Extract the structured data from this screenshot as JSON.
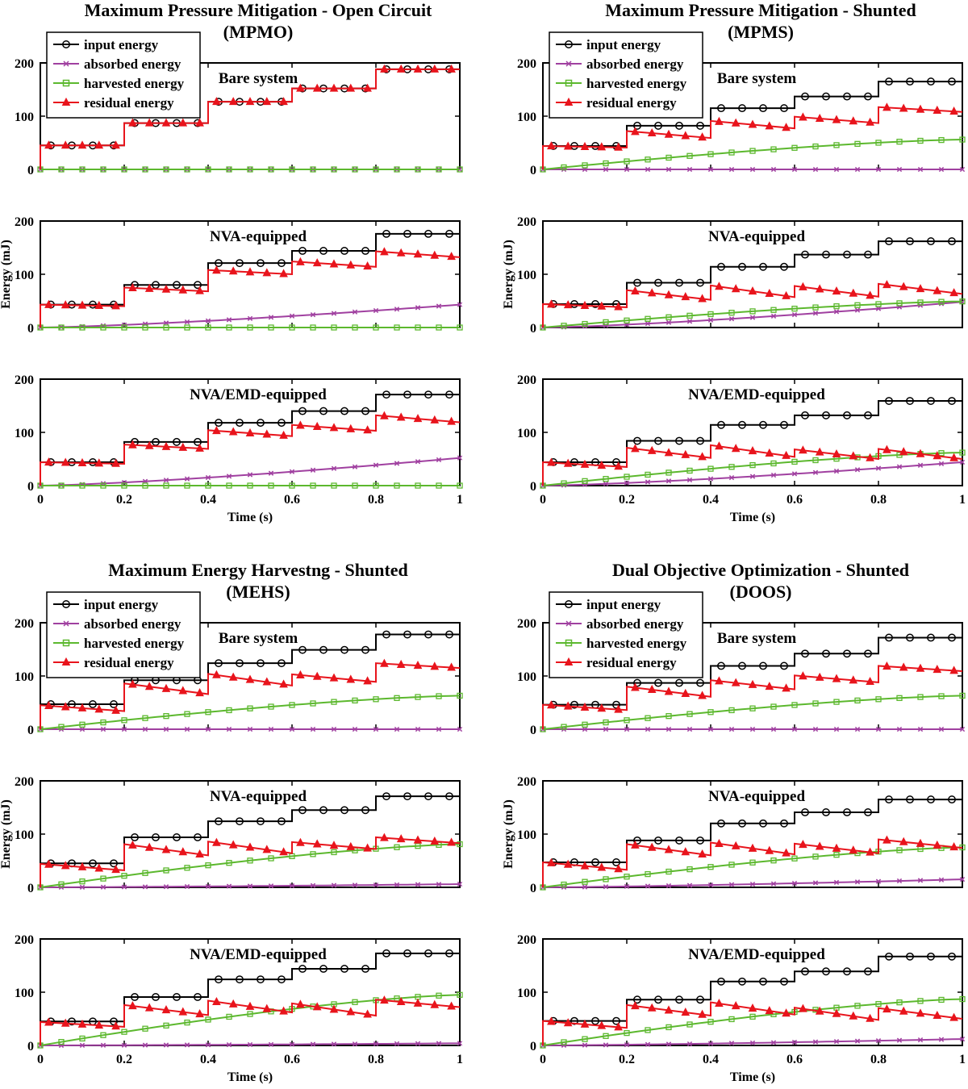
{
  "colors": {
    "input": "#000000",
    "absorbed": "#a040a0",
    "harvested": "#5cb82e",
    "residual": "#e8141c"
  },
  "legend": [
    "input energy",
    "absorbed energy",
    "harvested energy",
    "residual energy"
  ],
  "axes": {
    "xlabel": "Time (s)",
    "ylabel": "Energy (mJ)",
    "xticks": [
      "0",
      "0.2",
      "0.4",
      "0.6",
      "0.8",
      "1"
    ],
    "yticks": [
      "0",
      "100",
      "200"
    ],
    "xlim": [
      0,
      1
    ],
    "ylim": [
      0,
      200
    ]
  },
  "groups": [
    {
      "title1": "Maximum Pressure Mitigation - Open Circuit",
      "title2": "(MPMO)"
    },
    {
      "title1": "Maximum Pressure Mitigation - Shunted",
      "title2": "(MPMS)"
    },
    {
      "title1": "Maximum Energy Harvestng - Shunted",
      "title2": "(MEHS)"
    },
    {
      "title1": "Dual Objective Optimization - Shunted",
      "title2": "(DOOS)"
    }
  ],
  "chart_data": [
    {
      "type": "line",
      "group": 0,
      "title": "Bare system",
      "input": [
        45,
        87,
        127,
        152,
        188
      ],
      "residual": [
        [
          45,
          45
        ],
        [
          87,
          87
        ],
        [
          127,
          127
        ],
        [
          152,
          152
        ],
        [
          188,
          188
        ]
      ],
      "absorbed_end": 0,
      "harvested_end": 0
    },
    {
      "type": "line",
      "group": 0,
      "title": "NVA-equipped",
      "input": [
        43,
        80,
        121,
        144,
        176
      ],
      "residual": [
        [
          43,
          40
        ],
        [
          75,
          68
        ],
        [
          108,
          100
        ],
        [
          124,
          114
        ],
        [
          143,
          132
        ]
      ],
      "absorbed_end": 43,
      "harvested_end": 0
    },
    {
      "type": "line",
      "group": 0,
      "title": "NVA/EMD-equipped",
      "input": [
        44,
        82,
        118,
        140,
        171
      ],
      "residual": [
        [
          44,
          41
        ],
        [
          77,
          69
        ],
        [
          104,
          93
        ],
        [
          114,
          103
        ],
        [
          132,
          119
        ]
      ],
      "absorbed_end": 52,
      "harvested_end": 0
    },
    {
      "type": "line",
      "group": 1,
      "title": "Bare system",
      "input": [
        44,
        82,
        115,
        137,
        165
      ],
      "residual": [
        [
          44,
          41
        ],
        [
          72,
          59
        ],
        [
          91,
          77
        ],
        [
          99,
          87
        ],
        [
          117,
          108
        ]
      ],
      "absorbed_end": 0,
      "harvested_end": 56
    },
    {
      "type": "line",
      "group": 1,
      "title": "NVA-equipped",
      "input": [
        44,
        84,
        114,
        137,
        162
      ],
      "residual": [
        [
          44,
          38
        ],
        [
          70,
          52
        ],
        [
          79,
          57
        ],
        [
          78,
          58
        ],
        [
          82,
          63
        ]
      ],
      "absorbed_end": 48,
      "harvested_end": 49
    },
    {
      "type": "line",
      "group": 1,
      "title": "NVA/EMD-equipped",
      "input": [
        44,
        84,
        114,
        132,
        159
      ],
      "residual": [
        [
          44,
          35
        ],
        [
          71,
          52
        ],
        [
          76,
          54
        ],
        [
          68,
          50
        ],
        [
          69,
          50
        ]
      ],
      "absorbed_end": 44,
      "harvested_end": 62
    },
    {
      "type": "line",
      "group": 2,
      "title": "Bare system",
      "input": [
        47,
        92,
        124,
        149,
        178
      ],
      "residual": [
        [
          45,
          34
        ],
        [
          86,
          66
        ],
        [
          104,
          82
        ],
        [
          103,
          89
        ],
        [
          124,
          115
        ]
      ],
      "absorbed_end": 0,
      "harvested_end": 63
    },
    {
      "type": "line",
      "group": 2,
      "title": "NVA-equipped",
      "input": [
        45,
        94,
        124,
        145,
        171
      ],
      "residual": [
        [
          44,
          32
        ],
        [
          81,
          60
        ],
        [
          86,
          64
        ],
        [
          85,
          72
        ],
        [
          94,
          83
        ]
      ],
      "absorbed_end": 6,
      "harvested_end": 81
    },
    {
      "type": "line",
      "group": 2,
      "title": "NVA/EMD-equipped",
      "input": [
        45,
        91,
        124,
        144,
        173
      ],
      "residual": [
        [
          44,
          35
        ],
        [
          76,
          57
        ],
        [
          84,
          62
        ],
        [
          79,
          56
        ],
        [
          86,
          72
        ]
      ],
      "absorbed_end": 4,
      "harvested_end": 95
    },
    {
      "type": "line",
      "group": 3,
      "title": "Bare system",
      "input": [
        46,
        87,
        119,
        142,
        172
      ],
      "residual": [
        [
          46,
          36
        ],
        [
          80,
          61
        ],
        [
          92,
          75
        ],
        [
          101,
          88
        ],
        [
          119,
          109
        ]
      ],
      "absorbed_end": 0,
      "harvested_end": 63
    },
    {
      "type": "line",
      "group": 3,
      "title": "NVA-equipped",
      "input": [
        47,
        88,
        120,
        141,
        165
      ],
      "residual": [
        [
          47,
          33
        ],
        [
          81,
          60
        ],
        [
          84,
          62
        ],
        [
          82,
          64
        ],
        [
          90,
          74
        ]
      ],
      "absorbed_end": 15,
      "harvested_end": 75
    },
    {
      "type": "line",
      "group": 3,
      "title": "NVA/EMD-equipped",
      "input": [
        46,
        86,
        120,
        139,
        167
      ],
      "residual": [
        [
          46,
          33
        ],
        [
          76,
          56
        ],
        [
          81,
          58
        ],
        [
          71,
          48
        ],
        [
          70,
          50
        ]
      ],
      "absorbed_end": 12,
      "harvested_end": 87
    }
  ]
}
